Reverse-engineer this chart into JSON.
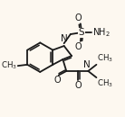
{
  "bg_color": "#fdf8f0",
  "line_color": "#1a1a1a",
  "lw": 1.3,
  "text_color": "#1a1a1a",
  "figsize": [
    1.38,
    1.3
  ],
  "dpi": 100,
  "xlim": [
    0,
    10
  ],
  "ylim": [
    0,
    10
  ]
}
